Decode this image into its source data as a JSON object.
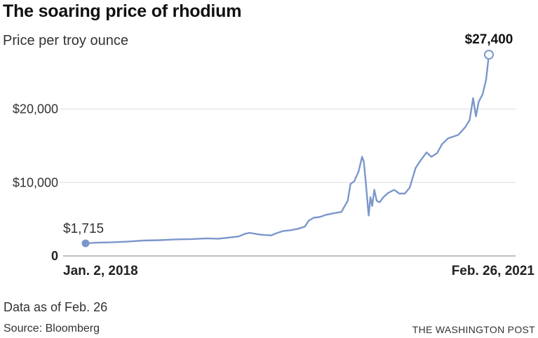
{
  "header": {
    "title": "The soaring price of rhodium",
    "subtitle": "Price per troy ounce"
  },
  "footer": {
    "note": "Data as of Feb. 26",
    "source": "Source: Bloomberg",
    "credit": "THE WASHINGTON POST"
  },
  "chart_data": {
    "type": "line",
    "title": "The soaring price of rhodium",
    "subtitle": "Price per troy ounce",
    "xlabel": "",
    "ylabel": "",
    "x_range": [
      "2018-01-02",
      "2021-02-26"
    ],
    "x_ticks": [
      {
        "date": "2018-01-02",
        "label": "Jan. 2, 2018"
      },
      {
        "date": "2021-02-26",
        "label": "Feb. 26, 2021"
      }
    ],
    "ylim": [
      0,
      27400
    ],
    "y_ticks": [
      {
        "value": 0,
        "label": "0"
      },
      {
        "value": 10000,
        "label": "$10,000"
      },
      {
        "value": 20000,
        "label": "$20,000"
      }
    ],
    "grid": true,
    "line_color": "#7b97cc",
    "start_label": "$1,715",
    "end_label": "$27,400",
    "series": [
      {
        "name": "",
        "points": [
          [
            "2018-01-02",
            1715
          ],
          [
            "2018-02-01",
            1800
          ],
          [
            "2018-03-15",
            1850
          ],
          [
            "2018-05-01",
            1950
          ],
          [
            "2018-06-15",
            2100
          ],
          [
            "2018-08-01",
            2150
          ],
          [
            "2018-09-15",
            2250
          ],
          [
            "2018-11-01",
            2300
          ],
          [
            "2018-12-15",
            2400
          ],
          [
            "2019-01-15",
            2350
          ],
          [
            "2019-02-15",
            2500
          ],
          [
            "2019-03-15",
            2650
          ],
          [
            "2019-04-01",
            3000
          ],
          [
            "2019-04-15",
            3150
          ],
          [
            "2019-05-15",
            2900
          ],
          [
            "2019-06-15",
            2800
          ],
          [
            "2019-07-01",
            3100
          ],
          [
            "2019-07-20",
            3400
          ],
          [
            "2019-08-10",
            3500
          ],
          [
            "2019-09-01",
            3700
          ],
          [
            "2019-09-20",
            4000
          ],
          [
            "2019-10-01",
            4800
          ],
          [
            "2019-10-15",
            5200
          ],
          [
            "2019-11-01",
            5300
          ],
          [
            "2019-11-20",
            5600
          ],
          [
            "2019-12-10",
            5800
          ],
          [
            "2020-01-02",
            6000
          ],
          [
            "2020-01-20",
            7500
          ],
          [
            "2020-01-28",
            9800
          ],
          [
            "2020-02-08",
            10200
          ],
          [
            "2020-02-20",
            11500
          ],
          [
            "2020-03-01",
            13500
          ],
          [
            "2020-03-06",
            12800
          ],
          [
            "2020-03-12",
            9800
          ],
          [
            "2020-03-17",
            7000
          ],
          [
            "2020-03-20",
            5500
          ],
          [
            "2020-03-25",
            8000
          ],
          [
            "2020-03-30",
            6800
          ],
          [
            "2020-04-05",
            9000
          ],
          [
            "2020-04-12",
            7500
          ],
          [
            "2020-04-20",
            7300
          ],
          [
            "2020-05-01",
            8000
          ],
          [
            "2020-05-15",
            8600
          ],
          [
            "2020-06-01",
            9000
          ],
          [
            "2020-06-15",
            8500
          ],
          [
            "2020-07-01",
            8500
          ],
          [
            "2020-07-15",
            9300
          ],
          [
            "2020-08-01",
            12000
          ],
          [
            "2020-08-15",
            13000
          ],
          [
            "2020-09-01",
            14100
          ],
          [
            "2020-09-15",
            13500
          ],
          [
            "2020-10-01",
            14000
          ],
          [
            "2020-10-15",
            15200
          ],
          [
            "2020-11-01",
            16000
          ],
          [
            "2020-12-01",
            16500
          ],
          [
            "2020-12-20",
            17500
          ],
          [
            "2021-01-02",
            18500
          ],
          [
            "2021-01-12",
            21500
          ],
          [
            "2021-01-20",
            19000
          ],
          [
            "2021-01-28",
            21000
          ],
          [
            "2021-02-08",
            22000
          ],
          [
            "2021-02-18",
            24000
          ],
          [
            "2021-02-26",
            27400
          ]
        ]
      }
    ]
  }
}
